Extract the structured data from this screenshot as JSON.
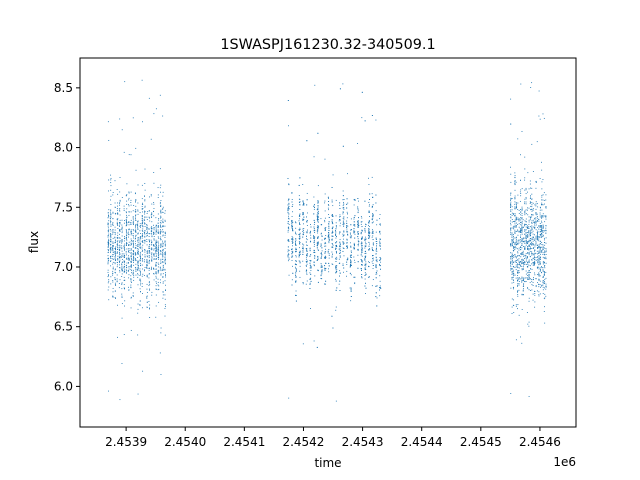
{
  "chart_data": {
    "type": "scatter",
    "title": "1SWASPJ161230.32-340509.1",
    "xlabel": "time",
    "ylabel": "flux",
    "x_offset_label": "1e6",
    "x_scale": 1000000,
    "xlim": [
      2453822,
      2454661
    ],
    "ylim": [
      5.66,
      8.75
    ],
    "x_ticks": [
      2453900,
      2454000,
      2454100,
      2454200,
      2454300,
      2454400,
      2454500,
      2454600
    ],
    "x_tick_labels": [
      "2.4539",
      "2.4540",
      "2.4541",
      "2.4542",
      "2.4543",
      "2.4544",
      "2.4545",
      "2.4546"
    ],
    "y_ticks": [
      6.0,
      6.5,
      7.0,
      7.5,
      8.0,
      8.5
    ],
    "y_tick_labels": [
      "6.0",
      "6.5",
      "7.0",
      "7.5",
      "8.0",
      "8.5"
    ],
    "grid": false,
    "marker_color": "#1f77b4",
    "segments": [
      {
        "x_start": 2453868,
        "x_end": 2453968,
        "y_center": 7.18,
        "y_spread": 0.28,
        "y_min": 5.86,
        "y_max": 8.6,
        "n_points": 1500
      },
      {
        "x_start": 2454172,
        "x_end": 2454333,
        "y_center": 7.22,
        "y_spread": 0.24,
        "y_min": 5.8,
        "y_max": 8.57,
        "n_points": 1700
      },
      {
        "x_start": 2454549,
        "x_end": 2454611,
        "y_center": 7.2,
        "y_spread": 0.3,
        "y_min": 5.84,
        "y_max": 8.58,
        "n_points": 1200
      }
    ]
  }
}
